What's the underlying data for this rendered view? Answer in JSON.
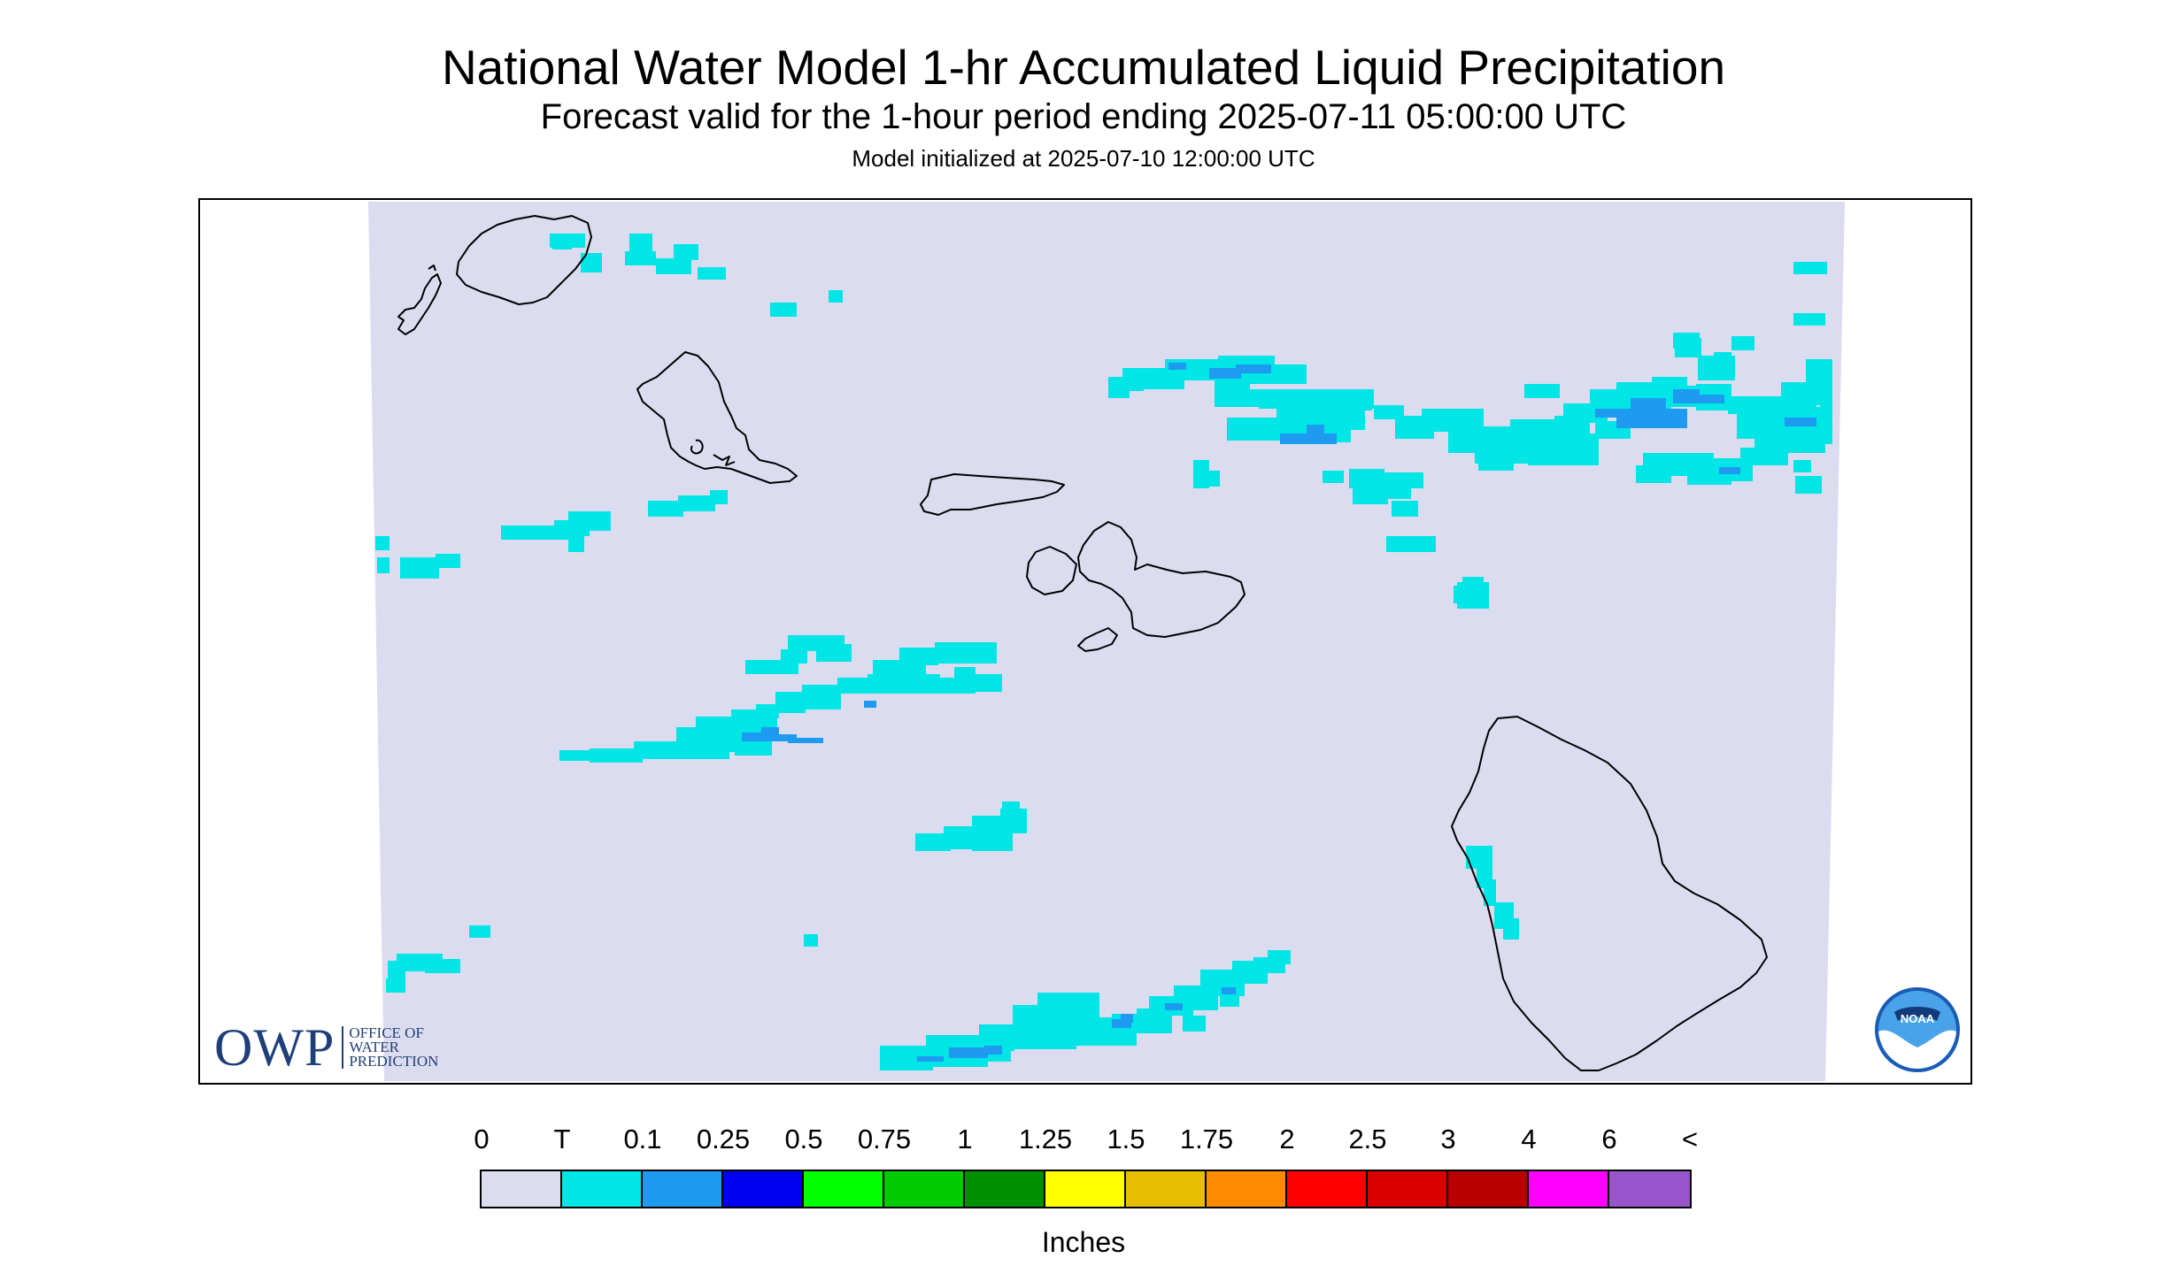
{
  "header": {
    "title": "National Water Model 1-hr Accumulated Liquid Precipitation",
    "subtitle": "Forecast valid for the 1-hour period ending 2025-07-11 05:00:00 UTC",
    "init_line": "Model initialized at 2025-07-10 12:00:00 UTC"
  },
  "logos": {
    "owp_letters": "OWP",
    "owp_line1": "OFFICE OF",
    "owp_line2": "WATER",
    "owp_line3": "PREDICTION",
    "noaa": "NOAA"
  },
  "legend": {
    "ticks": [
      "0",
      "T",
      "0.1",
      "0.25",
      "0.5",
      "0.75",
      "1",
      "1.25",
      "1.5",
      "1.75",
      "2",
      "2.5",
      "3",
      "4",
      "6",
      "<"
    ],
    "colors": [
      "#dcdcf0",
      "#00e5e5",
      "#1e9bf0",
      "#0000f0",
      "#00ff00",
      "#00cc00",
      "#008f00",
      "#ffff00",
      "#e6bf00",
      "#ff8c00",
      "#ff0000",
      "#d90000",
      "#b80000",
      "#ff00ff",
      "#9955cc"
    ],
    "units": "Inches"
  },
  "map": {
    "background_color": "#dcdcf0",
    "light_precip_color": "#00e5e5",
    "moderate_precip_color": "#1e9bf0",
    "coastline_color": "#000000"
  }
}
